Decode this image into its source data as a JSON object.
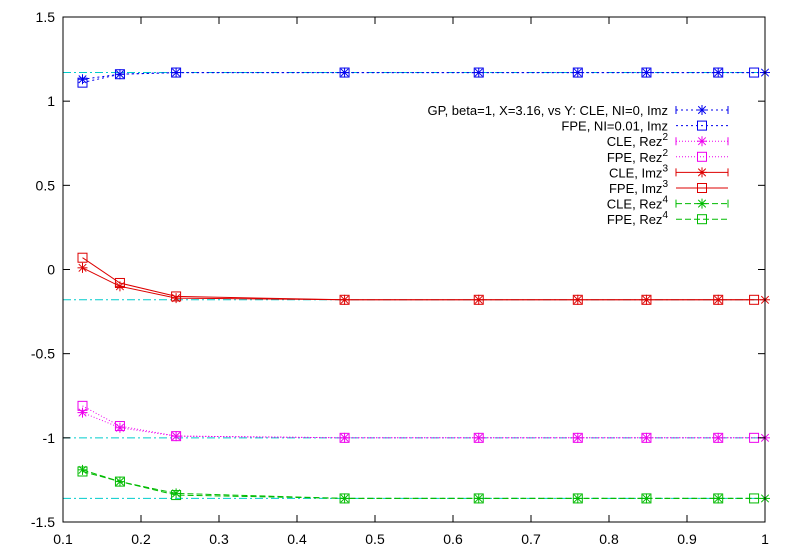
{
  "chart_data": {
    "type": "line",
    "title": "",
    "xlabel": "",
    "ylabel": "",
    "xlim": [
      0.1,
      1.0
    ],
    "ylim": [
      -1.5,
      1.5
    ],
    "x_ticks": [
      0.1,
      0.2,
      0.3,
      0.4,
      0.5,
      0.6,
      0.7,
      0.8,
      0.9,
      1.0
    ],
    "x_tick_labels": [
      "0.1",
      "0.2",
      "0.3",
      "0.4",
      "0.5",
      "0.6",
      "0.7",
      "0.8",
      "0.9",
      "1"
    ],
    "y_ticks": [
      -1.5,
      -1.0,
      -0.5,
      0.0,
      0.5,
      1.0,
      1.5
    ],
    "y_tick_labels": [
      "-1.5",
      "-1",
      "-0.5",
      "0",
      "0.5",
      "1",
      "1.5"
    ],
    "grid": false,
    "legend_position": "top-right",
    "reference_lines": [
      {
        "y": 1.17,
        "color": "#00cccc"
      },
      {
        "y": -0.18,
        "color": "#00cccc"
      },
      {
        "y": -1.0,
        "color": "#00cccc"
      },
      {
        "y": -1.36,
        "color": "#00cccc"
      }
    ],
    "series": [
      {
        "name": "GP, beta=1, X=3.16, vs Y: CLE, NI=0, Imz",
        "label_base": "GP, beta=1, X=3.16, vs Y: CLE, NI=0, Imz",
        "label_sup": "",
        "color": "#0000ee",
        "marker": "star",
        "dash": "2,3",
        "error_bars": true,
        "x": [
          0.125,
          0.173,
          0.245,
          0.461,
          0.633,
          0.76,
          0.848,
          0.94,
          1.0
        ],
        "y": [
          1.13,
          1.16,
          1.17,
          1.17,
          1.17,
          1.17,
          1.17,
          1.17,
          1.17
        ]
      },
      {
        "name": "FPE, NI=0.01, Imz",
        "label_base": "FPE, NI=0.01, Imz",
        "label_sup": "",
        "color": "#0000ee",
        "marker": "square",
        "dash": "2,3",
        "error_bars": false,
        "x": [
          0.125,
          0.173,
          0.245,
          0.461,
          0.633,
          0.76,
          0.848,
          0.94,
          0.986
        ],
        "y": [
          1.11,
          1.16,
          1.17,
          1.17,
          1.17,
          1.17,
          1.17,
          1.17,
          1.17
        ]
      },
      {
        "name": "CLE, Rez2",
        "label_base": "CLE, Rez",
        "label_sup": "2",
        "color": "#ee00ee",
        "marker": "star",
        "dash": "1,2",
        "error_bars": true,
        "x": [
          0.125,
          0.173,
          0.245,
          0.461,
          0.633,
          0.76,
          0.848,
          0.94,
          1.0
        ],
        "y": [
          -0.85,
          -0.94,
          -0.99,
          -1.0,
          -1.0,
          -1.0,
          -1.0,
          -1.0,
          -1.0
        ]
      },
      {
        "name": "FPE, Rez2",
        "label_base": "FPE, Rez",
        "label_sup": "2",
        "color": "#ee00ee",
        "marker": "square",
        "dash": "1,2",
        "error_bars": false,
        "x": [
          0.125,
          0.173,
          0.245,
          0.461,
          0.633,
          0.76,
          0.848,
          0.94,
          0.986
        ],
        "y": [
          -0.81,
          -0.93,
          -0.99,
          -1.0,
          -1.0,
          -1.0,
          -1.0,
          -1.0,
          -1.0
        ]
      },
      {
        "name": "CLE, Imz3",
        "label_base": "CLE, Imz",
        "label_sup": "3",
        "color": "#dd0000",
        "marker": "star",
        "dash": "",
        "error_bars": true,
        "x": [
          0.125,
          0.173,
          0.245,
          0.461,
          0.633,
          0.76,
          0.848,
          0.94,
          1.0
        ],
        "y": [
          0.01,
          -0.1,
          -0.17,
          -0.18,
          -0.18,
          -0.18,
          -0.18,
          -0.18,
          -0.18
        ]
      },
      {
        "name": "FPE, Imz3",
        "label_base": "FPE, Imz",
        "label_sup": "3",
        "color": "#dd0000",
        "marker": "square",
        "dash": "",
        "error_bars": false,
        "x": [
          0.125,
          0.173,
          0.245,
          0.461,
          0.633,
          0.76,
          0.848,
          0.94,
          0.986
        ],
        "y": [
          0.07,
          -0.08,
          -0.16,
          -0.18,
          -0.18,
          -0.18,
          -0.18,
          -0.18,
          -0.18
        ]
      },
      {
        "name": "CLE, Rez4",
        "label_base": "CLE, Rez",
        "label_sup": "4",
        "color": "#00bb00",
        "marker": "star",
        "dash": "6,3",
        "error_bars": true,
        "x": [
          0.125,
          0.173,
          0.245,
          0.461,
          0.633,
          0.76,
          0.848,
          0.94,
          1.0
        ],
        "y": [
          -1.19,
          -1.26,
          -1.33,
          -1.36,
          -1.36,
          -1.36,
          -1.36,
          -1.36,
          -1.36
        ]
      },
      {
        "name": "FPE, Rez4",
        "label_base": "FPE, Rez",
        "label_sup": "4",
        "color": "#00bb00",
        "marker": "square",
        "dash": "6,3",
        "error_bars": false,
        "x": [
          0.125,
          0.173,
          0.245,
          0.461,
          0.633,
          0.76,
          0.848,
          0.94,
          0.986
        ],
        "y": [
          -1.2,
          -1.26,
          -1.34,
          -1.36,
          -1.36,
          -1.36,
          -1.36,
          -1.36,
          -1.36
        ]
      }
    ]
  }
}
